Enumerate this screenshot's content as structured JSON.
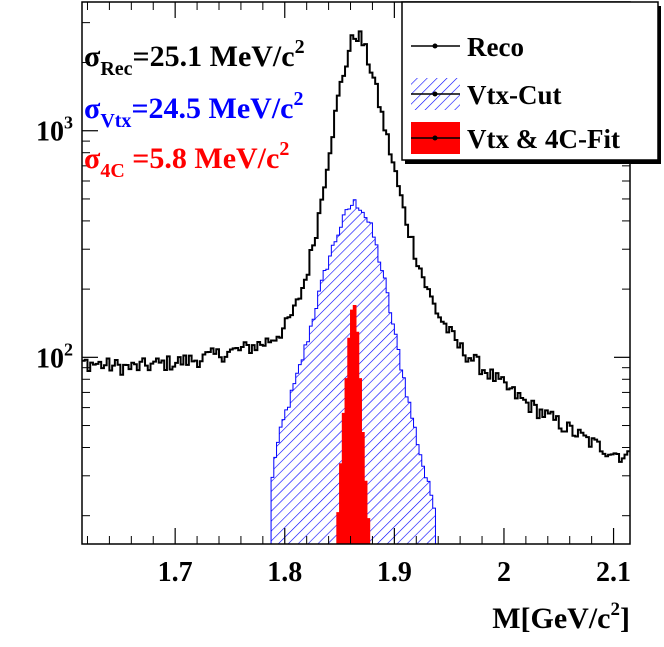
{
  "chart_data": {
    "type": "line",
    "xlabel": "M[GeV/c²]",
    "xlabel_parts": {
      "main": "M[GeV/c",
      "sup": "2",
      "tail": "]"
    },
    "xlim": [
      1.615,
      2.115
    ],
    "y_scale": "log",
    "ylim": [
      15,
      3700
    ],
    "x_ticks": [
      1.7,
      1.8,
      1.9,
      2.0,
      2.1
    ],
    "x_tick_labels": [
      "1.7",
      "1.8",
      "1.9",
      "2",
      "2.1"
    ],
    "y_ticks": [
      100,
      1000
    ],
    "y_tick_labels": [
      {
        "base": "10",
        "exp": "2"
      },
      {
        "base": "10",
        "exp": "3"
      }
    ],
    "annotations": [
      {
        "sym": "σ",
        "sub": "Rec",
        "text": "=25.1 MeV/c",
        "sup": "2",
        "color": "#000000"
      },
      {
        "sym": "σ",
        "sub": "Vtx",
        "text": "=24.5 MeV/c",
        "sup": "2",
        "color": "#0000ff"
      },
      {
        "sym": "σ",
        "sub": "4C",
        "text": " =5.8 MeV/c",
        "sup": "2",
        "color": "#ff0000"
      }
    ],
    "legend": {
      "position": "top-right",
      "entries": [
        {
          "label": "Reco",
          "style": "line"
        },
        {
          "label": "Vtx-Cut",
          "style": "hatch"
        },
        {
          "label": "Vtx & 4C-Fit",
          "style": "fill"
        }
      ]
    },
    "series": [
      {
        "name": "Reco",
        "style": "line",
        "color": "#000000",
        "x": [
          1.615,
          1.64,
          1.66,
          1.68,
          1.7,
          1.72,
          1.74,
          1.76,
          1.78,
          1.79,
          1.8,
          1.81,
          1.82,
          1.83,
          1.84,
          1.85,
          1.86,
          1.865,
          1.87,
          1.88,
          1.89,
          1.9,
          1.91,
          1.92,
          1.93,
          1.94,
          1.95,
          1.96,
          1.98,
          2.0,
          2.02,
          2.04,
          2.06,
          2.08,
          2.1,
          2.115
        ],
        "values": [
          95,
          92,
          90,
          93,
          95,
          98,
          103,
          108,
          115,
          122,
          135,
          165,
          230,
          390,
          780,
          1500,
          2400,
          2700,
          2550,
          1800,
          1100,
          680,
          420,
          280,
          200,
          155,
          130,
          110,
          90,
          75,
          63,
          55,
          48,
          42,
          38,
          36
        ],
        "noise": 0.08
      },
      {
        "name": "Vtx-Cut",
        "style": "hatch",
        "color": "#0000ff",
        "x": [
          1.7875,
          1.79,
          1.8,
          1.81,
          1.82,
          1.83,
          1.84,
          1.85,
          1.86,
          1.865,
          1.87,
          1.88,
          1.89,
          1.9,
          1.91,
          1.92,
          1.93,
          1.9375
        ],
        "values": [
          24,
          35,
          55,
          78,
          115,
          180,
          270,
          370,
          470,
          480,
          460,
          360,
          230,
          130,
          75,
          45,
          28,
          22
        ],
        "noise": 0.06
      },
      {
        "name": "Vtx & 4C-Fit",
        "style": "fill",
        "color": "#ff0000",
        "x": [
          1.8475,
          1.85,
          1.855,
          1.86,
          1.862,
          1.864,
          1.866,
          1.87,
          1.875,
          1.8775
        ],
        "values": [
          16,
          28,
          70,
          150,
          175,
          170,
          140,
          60,
          22,
          16
        ],
        "noise": 0.05
      }
    ]
  }
}
